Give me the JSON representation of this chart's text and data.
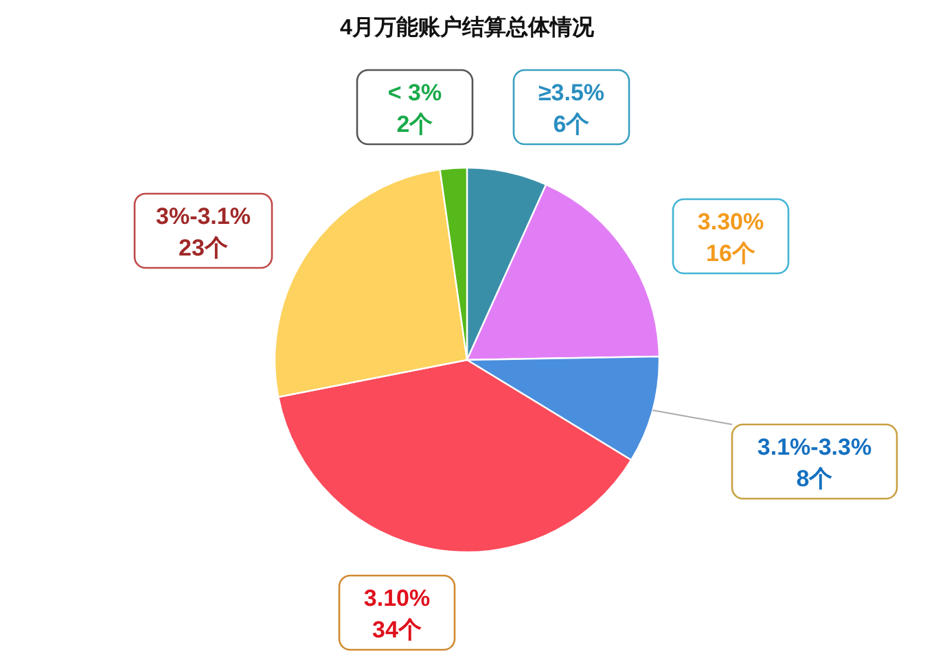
{
  "chart_data": {
    "type": "pie",
    "title": "4月万能账户结算总体情况",
    "categories": [
      "≥3.5%",
      "3.30%",
      "3.1%-3.3%",
      "3.10%",
      "3%-3.1%",
      "< 3%"
    ],
    "values": [
      6,
      16,
      8,
      34,
      23,
      2
    ],
    "value_labels": [
      "6个",
      "16个",
      "8个",
      "34个",
      "23个",
      "2个"
    ],
    "colors": [
      "#3a8fa8",
      "#e27ef5",
      "#4a8ede",
      "#fb4a5a",
      "#fdd25e",
      "#56b81a"
    ]
  }
}
